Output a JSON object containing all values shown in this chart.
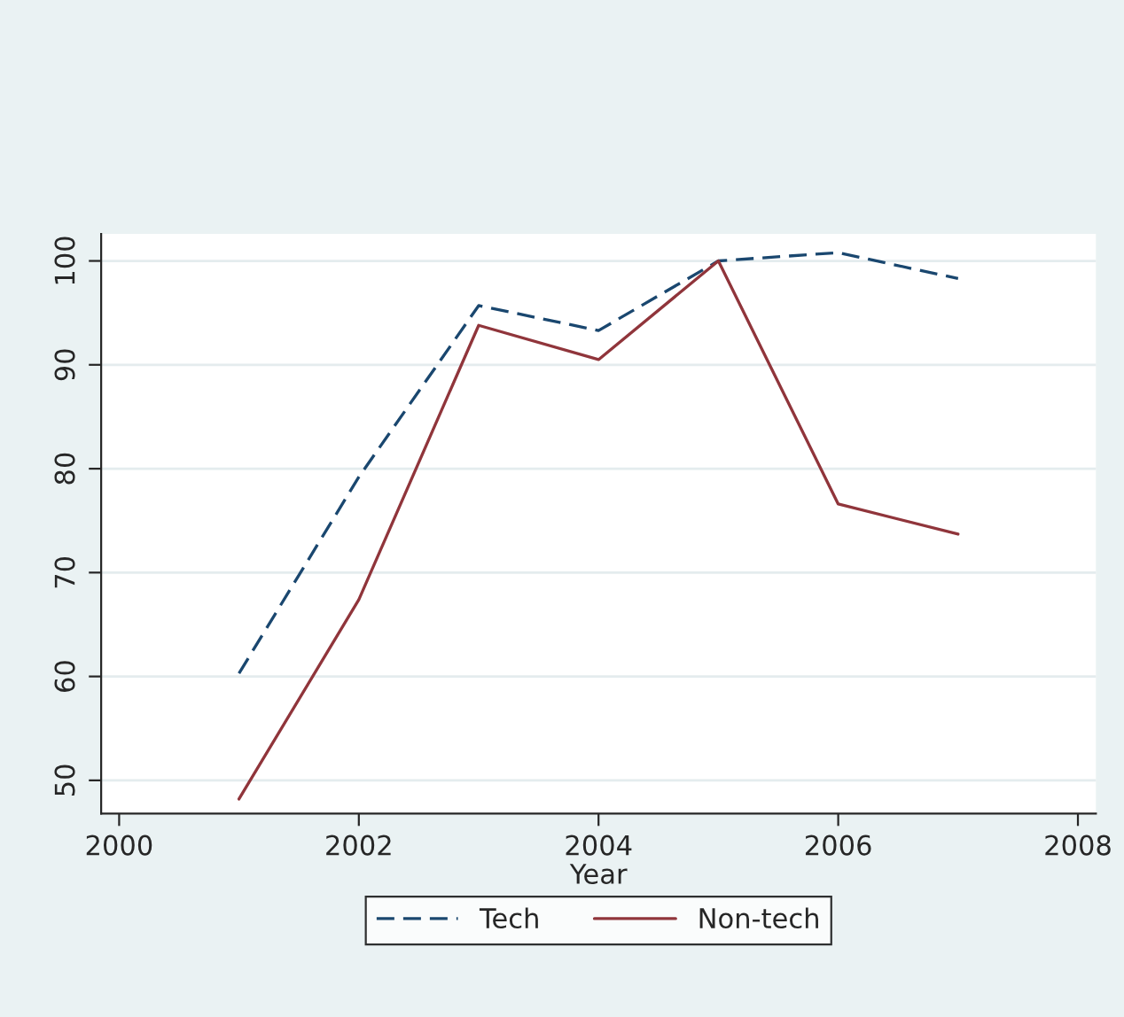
{
  "chart_data": {
    "type": "line",
    "xlabel": "Year",
    "x": [
      2001,
      2002,
      2003,
      2004,
      2005,
      2006,
      2007
    ],
    "series": [
      {
        "name": "Tech",
        "color": "#1a476f",
        "line_style": "dashed",
        "values": [
          60.3,
          79.2,
          95.7,
          93.3,
          100,
          100.8,
          98.3
        ]
      },
      {
        "name": "Non-tech",
        "color": "#90353b",
        "line_style": "solid",
        "values": [
          48.2,
          67.4,
          93.8,
          90.5,
          100,
          76.6,
          73.7
        ]
      }
    ],
    "xlim": [
      1999.85,
      2008.15
    ],
    "ylim": [
      46.8,
      102.6
    ],
    "xticks": [
      2000,
      2002,
      2004,
      2006,
      2008
    ],
    "yticks": [
      50,
      60,
      70,
      80,
      90,
      100
    ],
    "grid": "y",
    "legend": "bottom",
    "marker": "none"
  }
}
